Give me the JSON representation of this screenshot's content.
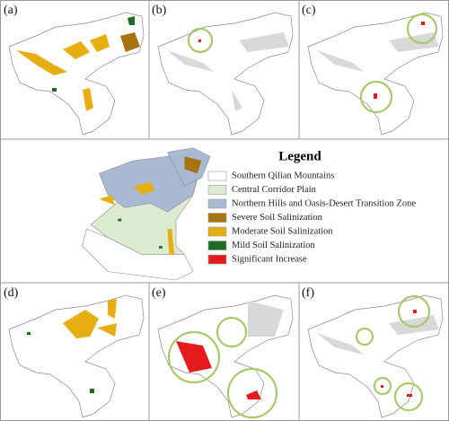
{
  "panels": [
    {
      "label": "(a)"
    },
    {
      "label": "(b)"
    },
    {
      "label": "(c)"
    },
    {
      "label": "(d)"
    },
    {
      "label": "(e)"
    },
    {
      "label": "(f)"
    }
  ],
  "legend": {
    "title": "Legend",
    "items": [
      {
        "label": "Southern Qilian Mountains",
        "color": "#ffffff"
      },
      {
        "label": "Central Corridor Plain",
        "color": "#dcebcf"
      },
      {
        "label": "Northern Hills and Oasis-Desert Transition Zone",
        "color": "#a9b8d3"
      },
      {
        "label": "Severe Soil Salinization",
        "color": "#a8720e"
      },
      {
        "label": "Moderate Soil Salinization",
        "color": "#e6ae10"
      },
      {
        "label": "Mild Soil Salinization",
        "color": "#1f6b1f"
      },
      {
        "label": "Significant Increase",
        "color": "#e41a1c"
      }
    ]
  }
}
